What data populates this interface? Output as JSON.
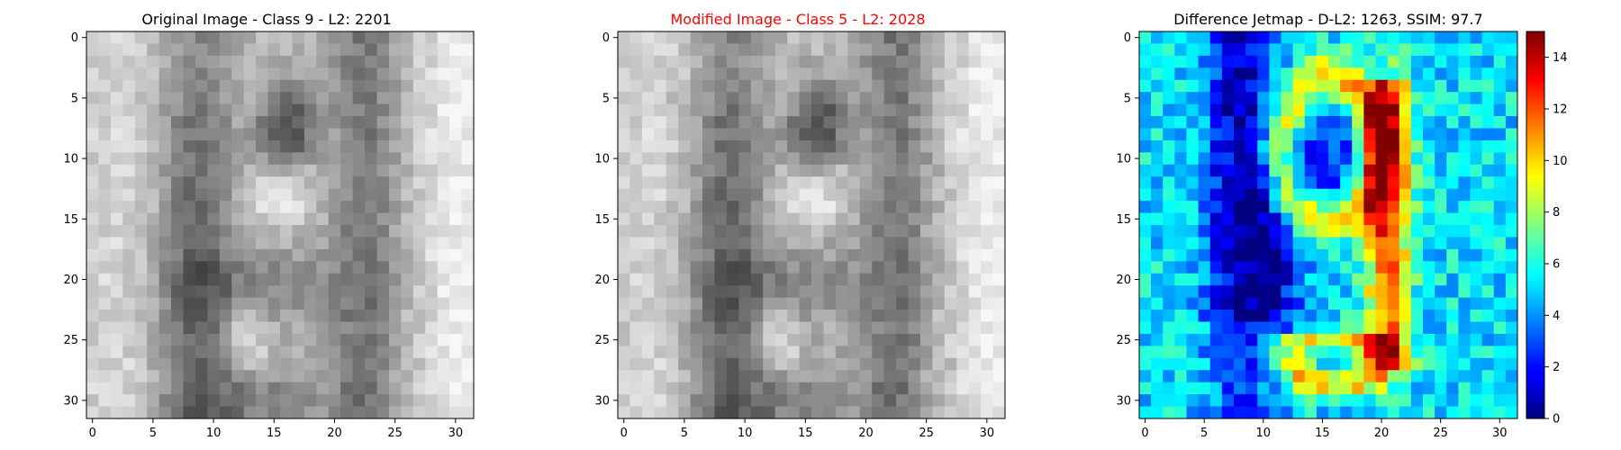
{
  "chart_data": [
    {
      "type": "heatmap",
      "title": "Original Image - Class 9 - L2: 2201",
      "title_color": "#000000",
      "colormap": "gray",
      "grid_size": [
        32,
        32
      ],
      "xticks": [
        "0",
        "5",
        "10",
        "15",
        "20",
        "25",
        "30"
      ],
      "yticks": [
        "0",
        "5",
        "10",
        "15",
        "20",
        "25",
        "30"
      ]
    },
    {
      "type": "heatmap",
      "title": "Modified Image - Class 5 - L2: 2028",
      "title_color": "#ff0000",
      "colormap": "gray",
      "grid_size": [
        32,
        32
      ],
      "xticks": [
        "0",
        "5",
        "10",
        "15",
        "20",
        "25",
        "30"
      ],
      "yticks": [
        "0",
        "5",
        "10",
        "15",
        "20",
        "25",
        "30"
      ]
    },
    {
      "type": "heatmap",
      "title": "Difference Jetmap - D-L2: 1263, SSIM: 97.7",
      "title_color": "#000000",
      "colormap": "jet",
      "grid_size": [
        32,
        32
      ],
      "xticks": [
        "0",
        "5",
        "10",
        "15",
        "20",
        "25",
        "30"
      ],
      "yticks": [
        "0",
        "5",
        "10",
        "15",
        "20",
        "25",
        "30"
      ],
      "colorbar": {
        "range": [
          0,
          15
        ],
        "ticks": [
          "0",
          "2",
          "4",
          "6",
          "8",
          "10",
          "12",
          "14"
        ]
      }
    }
  ]
}
